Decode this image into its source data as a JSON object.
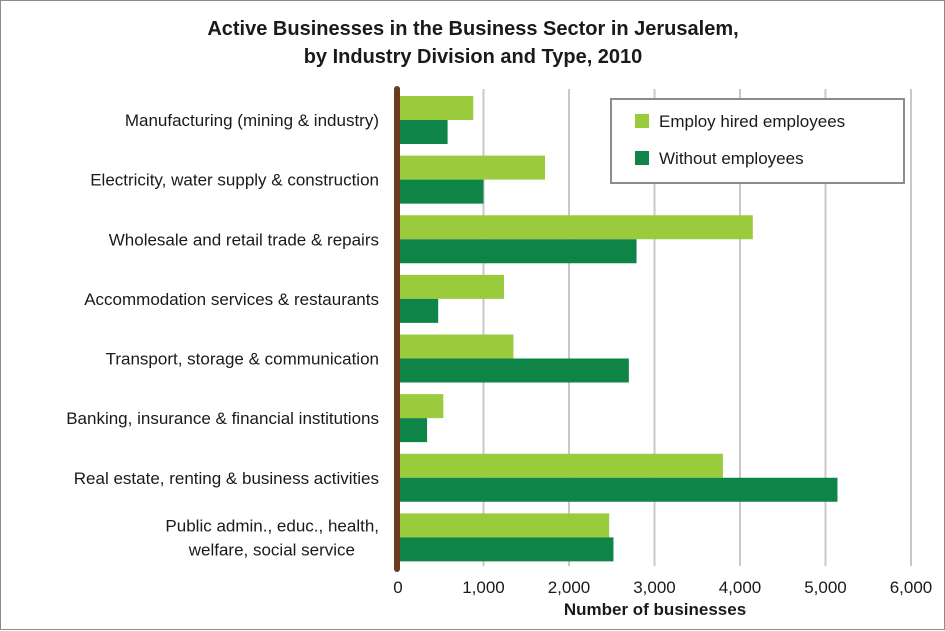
{
  "chart_data": {
    "type": "bar",
    "orientation": "horizontal",
    "title_lines": [
      "Active Businesses in the Business Sector in Jerusalem,",
      "by Industry Division and Type, 2010"
    ],
    "xlabel": "Number of businesses",
    "ylabel": "",
    "xlim": [
      0,
      6000
    ],
    "x_ticks": [
      0,
      1000,
      2000,
      3000,
      4000,
      5000,
      6000
    ],
    "x_tick_labels": [
      "0",
      "1,000",
      "2,000",
      "3,000",
      "4,000",
      "5,000",
      "6,000"
    ],
    "grid": "vertical",
    "legend_position": "top-right",
    "categories": [
      [
        "Manufacturing (mining & industry)"
      ],
      [
        "Electricity, water supply & construction"
      ],
      [
        "Wholesale and retail trade & repairs"
      ],
      [
        "Accommodation services & restaurants"
      ],
      [
        "Transport, storage & communication"
      ],
      [
        "Banking, insurance & financial institutions"
      ],
      [
        "Real estate, renting & business activities"
      ],
      [
        "Public admin., educ., health,",
        "welfare, social service"
      ]
    ],
    "series": [
      {
        "name": "Employ hired employees",
        "color": "#9acb3c",
        "values": [
          880,
          1720,
          4150,
          1240,
          1350,
          530,
          3800,
          2470
        ]
      },
      {
        "name": "Without employees",
        "color": "#0f8447",
        "values": [
          580,
          1000,
          2790,
          470,
          2700,
          340,
          5140,
          2520
        ]
      }
    ],
    "colors": {
      "axis_line": "#6b3a1f",
      "gridline": "#c8c8c8",
      "legend_border": "#8c8c8c"
    }
  }
}
